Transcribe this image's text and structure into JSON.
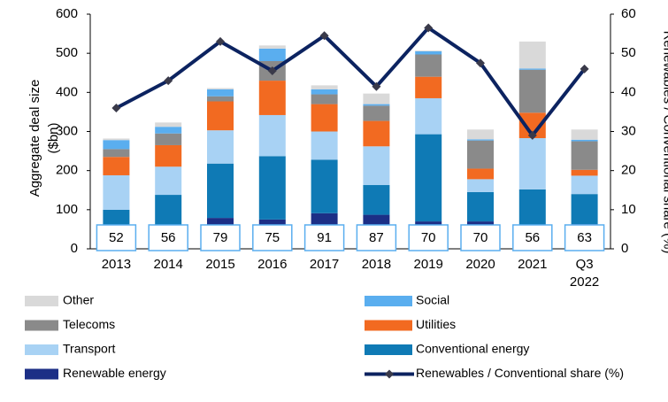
{
  "chart_data": {
    "type": "stacked_bar_line",
    "y_label": "Aggregate deal size ($bn)",
    "y2_label": "Renewables / Conventional share (%)",
    "categories": [
      "2013",
      "2014",
      "2015",
      "2016",
      "2017",
      "2018",
      "2019",
      "2020",
      "2021",
      "Q3 2022"
    ],
    "ylim": [
      0,
      600
    ],
    "yticks": [
      0,
      100,
      200,
      300,
      400,
      500,
      600
    ],
    "y2lim": [
      0,
      60
    ],
    "y2ticks": [
      0,
      10,
      20,
      30,
      40,
      50,
      60
    ],
    "legend": "bottom",
    "series": [
      {
        "name": "Renewable energy",
        "color": "#1c2f86",
        "values": [
          52,
          56,
          79,
          75,
          91,
          87,
          70,
          70,
          56,
          63
        ]
      },
      {
        "name": "Conventional energy",
        "color": "#0f7ab5",
        "values": [
          48,
          82,
          139,
          162,
          137,
          76,
          223,
          75,
          96,
          77
        ]
      },
      {
        "name": "Transport",
        "color": "#a8d2f4",
        "values": [
          88,
          72,
          85,
          105,
          72,
          99,
          92,
          33,
          131,
          47
        ]
      },
      {
        "name": "Utilities",
        "color": "#f26a21",
        "values": [
          47,
          55,
          74,
          88,
          70,
          65,
          55,
          27,
          65,
          15
        ]
      },
      {
        "name": "Telecoms",
        "color": "#8a8a8a",
        "values": [
          20,
          30,
          13,
          50,
          25,
          39,
          57,
          72,
          110,
          73
        ]
      },
      {
        "name": "Social",
        "color": "#5aaeef",
        "values": [
          23,
          17,
          18,
          32,
          13,
          4,
          8,
          3,
          3,
          4
        ]
      },
      {
        "name": "Other",
        "color": "#d9d9d9",
        "values": [
          4,
          11,
          3,
          8,
          10,
          27,
          2,
          25,
          69,
          26
        ]
      },
      {
        "name": "Renewables / Conventional share (%)",
        "color": "#0c2360",
        "axis": "y2",
        "type": "line",
        "values": [
          36,
          43,
          53,
          45.5,
          54.5,
          41.5,
          56.5,
          47.5,
          29,
          46
        ]
      }
    ]
  }
}
